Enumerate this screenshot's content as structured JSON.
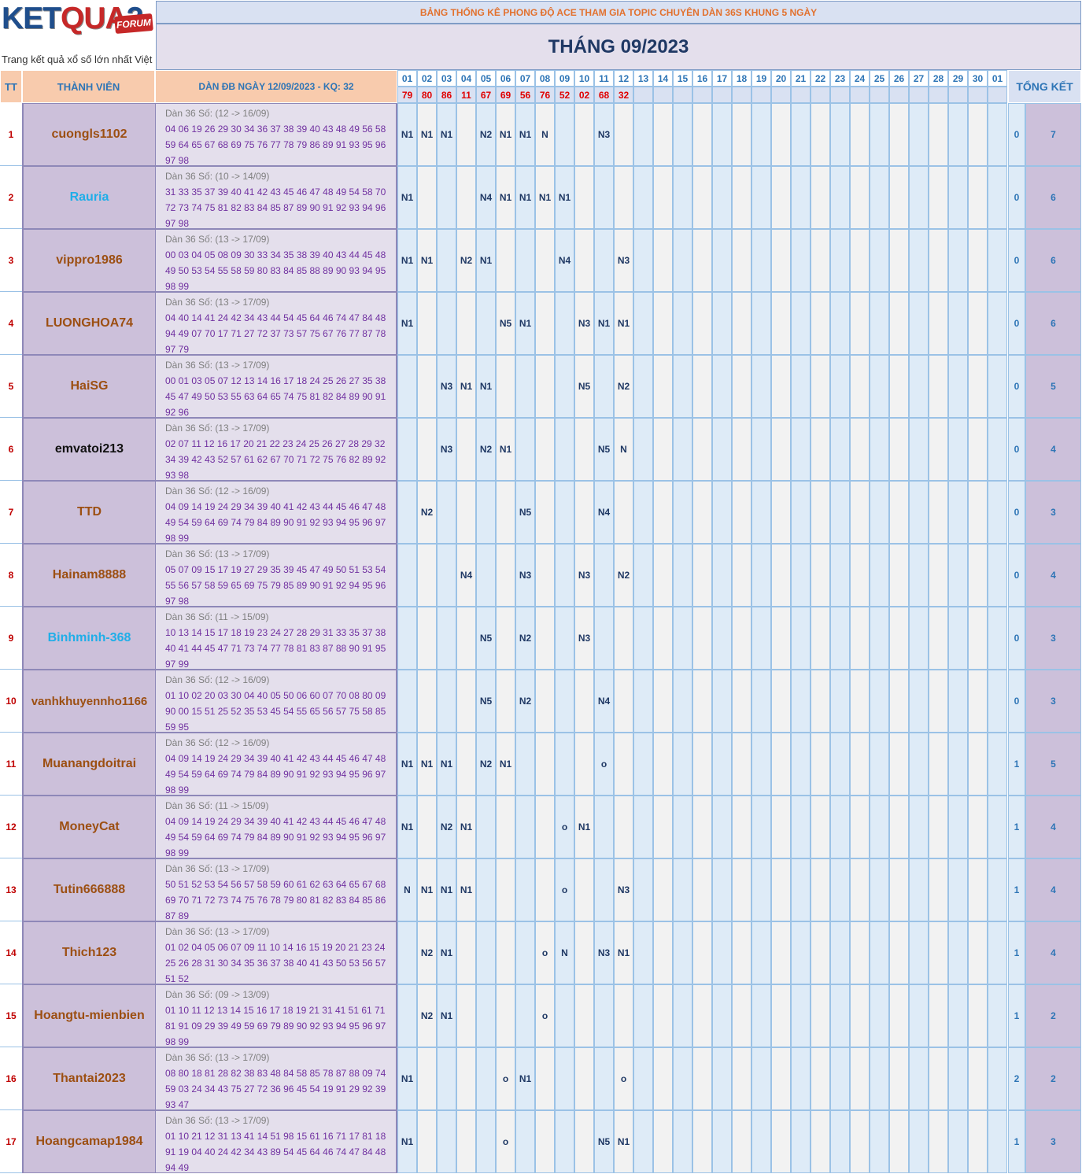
{
  "logo": {
    "word_a": "KET",
    "word_b": "QUA",
    "word_c": "2",
    "badge": "FORUM",
    "tagline": "Trang kết quả xổ số lớn nhất Việt Nam"
  },
  "banner": "BẢNG THỐNG KÊ PHONG ĐỘ ACE THAM GIA TOPIC CHUYÊN DÀN 36S KHUNG 5 NGÀY",
  "month_title": "THÁNG 09/2023",
  "headers": {
    "tt": "TT",
    "member": "THÀNH VIÊN",
    "dan": "DÀN ĐB NGÀY 12/09/2023 - KQ: 32",
    "summary": "TỔNG KẾT"
  },
  "days": [
    "01",
    "02",
    "03",
    "04",
    "05",
    "06",
    "07",
    "08",
    "09",
    "10",
    "11",
    "12",
    "13",
    "14",
    "15",
    "16",
    "17",
    "18",
    "19",
    "20",
    "21",
    "22",
    "23",
    "24",
    "25",
    "26",
    "27",
    "28",
    "29",
    "30",
    "01"
  ],
  "results": [
    "79",
    "80",
    "86",
    "11",
    "67",
    "69",
    "56",
    "76",
    "52",
    "02",
    "68",
    "32",
    "",
    "",
    "",
    "",
    "",
    "",
    "",
    "",
    "",
    "",
    "",
    "",
    "",
    "",
    "",
    "",
    "",
    "",
    ""
  ],
  "colors": {
    "brown": "#9c4f12",
    "cyan": "#1faee8",
    "black": "#111111",
    "header_blue": "#2e75b6",
    "result_red": "#e00000",
    "mark_navy": "#1f3864",
    "purple": "#7030a0"
  },
  "rows": [
    {
      "tt": "1",
      "name": "cuongls1102",
      "color": "brown",
      "line1": "Dàn 36 Số: (12 -> 16/09)",
      "nums": "04 06 19 26 29 30 34 36 37 38 39 40 43 48 49 56 58 59 64 65 67 68 69 75 76 77 78 79 86 89 91 93 95 96 97 98",
      "marks": [
        "N1",
        "N1",
        "N1",
        "",
        "N2",
        "N1",
        "N1",
        "N",
        "",
        "",
        "N3",
        "",
        "",
        "",
        "",
        "",
        "",
        "",
        "",
        "",
        "",
        "",
        "",
        "",
        "",
        "",
        "",
        "",
        "",
        "",
        ""
      ],
      "s1": "0",
      "s2": "7"
    },
    {
      "tt": "2",
      "name": "Rauria",
      "color": "cyan",
      "line1": "Dàn 36 Số: (10 -> 14/09)",
      "nums": "31 33 35 37 39 40 41 42 43 45 46 47 48 49 54 58 70 72 73 74 75 81 82 83 84 85 87 89 90 91 92 93 94 96 97 98",
      "marks": [
        "N1",
        "",
        "",
        "",
        "N4",
        "N1",
        "N1",
        "N1",
        "N1",
        "",
        "",
        "",
        "",
        "",
        "",
        "",
        "",
        "",
        "",
        "",
        "",
        "",
        "",
        "",
        "",
        "",
        "",
        "",
        "",
        "",
        ""
      ],
      "s1": "0",
      "s2": "6"
    },
    {
      "tt": "3",
      "name": "vippro1986",
      "color": "brown",
      "line1": "Dàn 36 Số: (13 -> 17/09)",
      "nums": "00 03 04 05 08 09 30 33 34 35 38 39 40 43 44 45 48 49 50 53 54 55 58 59 80 83 84 85 88 89 90 93 94 95 98 99",
      "marks": [
        "N1",
        "N1",
        "",
        "N2",
        "N1",
        "",
        "",
        "",
        "N4",
        "",
        "",
        "N3",
        "",
        "",
        "",
        "",
        "",
        "",
        "",
        "",
        "",
        "",
        "",
        "",
        "",
        "",
        "",
        "",
        "",
        "",
        ""
      ],
      "s1": "0",
      "s2": "6"
    },
    {
      "tt": "4",
      "name": "LUONGHOA74",
      "color": "brown",
      "line1": "Dàn 36 Số: (13 -> 17/09)",
      "nums": "04 40 14 41 24 42 34 43 44 54 45 64 46 74 47 84 48 94 49 07 70 17 71 27 72 37 73 57 75 67 76 77 87 78 97 79",
      "marks": [
        "N1",
        "",
        "",
        "",
        "",
        "N5",
        "N1",
        "",
        "",
        "N3",
        "N1",
        "N1",
        "",
        "",
        "",
        "",
        "",
        "",
        "",
        "",
        "",
        "",
        "",
        "",
        "",
        "",
        "",
        "",
        "",
        "",
        ""
      ],
      "s1": "0",
      "s2": "6"
    },
    {
      "tt": "5",
      "name": "HaiSG",
      "color": "brown",
      "line1": "Dàn 36 Số: (13 -> 17/09)",
      "nums": "00 01 03 05 07 12 13 14 16 17 18 24 25 26 27 35 38 45 47 49 50 53 55 63 64 65 74 75 81 82 84 89 90 91 92 96",
      "marks": [
        "",
        "",
        "N3",
        "N1",
        "N1",
        "",
        "",
        "",
        "",
        "N5",
        "",
        "N2",
        "",
        "",
        "",
        "",
        "",
        "",
        "",
        "",
        "",
        "",
        "",
        "",
        "",
        "",
        "",
        "",
        "",
        "",
        ""
      ],
      "s1": "0",
      "s2": "5"
    },
    {
      "tt": "6",
      "name": "emvatoi213",
      "color": "black",
      "line1": "Dàn 36 Số: (13 -> 17/09)",
      "nums": "02 07 11 12 16 17 20 21 22 23 24 25 26 27 28 29 32 34 39 42 43 52 57 61 62 67 70 71 72 75 76 82 89 92 93 98",
      "marks": [
        "",
        "",
        "N3",
        "",
        "N2",
        "N1",
        "",
        "",
        "",
        "",
        "N5",
        "N",
        "",
        "",
        "",
        "",
        "",
        "",
        "",
        "",
        "",
        "",
        "",
        "",
        "",
        "",
        "",
        "",
        "",
        "",
        ""
      ],
      "s1": "0",
      "s2": "4"
    },
    {
      "tt": "7",
      "name": "TTD",
      "color": "brown",
      "line1": "Dàn 36 Số: (12 -> 16/09)",
      "nums": "04 09 14 19 24 29 34 39 40 41 42 43 44 45 46 47 48 49 54 59 64 69 74 79 84 89 90 91 92 93 94 95 96 97 98 99",
      "marks": [
        "",
        "N2",
        "",
        "",
        "",
        "",
        "N5",
        "",
        "",
        "",
        "N4",
        "",
        "",
        "",
        "",
        "",
        "",
        "",
        "",
        "",
        "",
        "",
        "",
        "",
        "",
        "",
        "",
        "",
        "",
        "",
        ""
      ],
      "s1": "0",
      "s2": "3"
    },
    {
      "tt": "8",
      "name": "Hainam8888",
      "color": "brown",
      "line1": "Dàn 36 Số: (13 -> 17/09)",
      "nums": "05 07 09 15 17 19 27 29 35 39 45 47 49 50 51 53 54 55 56 57 58 59 65 69 75 79 85 89 90 91 92 94 95 96 97 98",
      "marks": [
        "",
        "",
        "",
        "N4",
        "",
        "",
        "N3",
        "",
        "",
        "N3",
        "",
        "N2",
        "",
        "",
        "",
        "",
        "",
        "",
        "",
        "",
        "",
        "",
        "",
        "",
        "",
        "",
        "",
        "",
        "",
        "",
        ""
      ],
      "s1": "0",
      "s2": "4"
    },
    {
      "tt": "9",
      "name": "Binhminh-368",
      "color": "cyan",
      "line1": "Dàn 36 Số: (11 -> 15/09)",
      "nums": "10 13 14 15 17 18 19 23 24 27 28 29 31 33 35 37 38 40 41 44 45 47 71 73 74 77 78 81 83 87 88 90 91 95 97 99",
      "marks": [
        "",
        "",
        "",
        "",
        "N5",
        "",
        "N2",
        "",
        "",
        "N3",
        "",
        "",
        "",
        "",
        "",
        "",
        "",
        "",
        "",
        "",
        "",
        "",
        "",
        "",
        "",
        "",
        "",
        "",
        "",
        "",
        ""
      ],
      "s1": "0",
      "s2": "3"
    },
    {
      "tt": "10",
      "name": "vanhkhuyennho1166",
      "color": "brown",
      "line1": "Dàn 36 Số: (12 -> 16/09)",
      "nums": "01 10 02 20 03 30 04 40 05 50 06 60 07 70 08 80 09 90 00 15 51 25 52 35 53 45 54 55 65 56 57 75 58 85 59 95",
      "marks": [
        "",
        "",
        "",
        "",
        "N5",
        "",
        "N2",
        "",
        "",
        "",
        "N4",
        "",
        "",
        "",
        "",
        "",
        "",
        "",
        "",
        "",
        "",
        "",
        "",
        "",
        "",
        "",
        "",
        "",
        "",
        "",
        ""
      ],
      "s1": "0",
      "s2": "3"
    },
    {
      "tt": "11",
      "name": "Muanangdoitrai",
      "color": "brown",
      "line1": "Dàn 36 Số: (12 -> 16/09)",
      "nums": "04 09 14 19 24 29 34 39 40 41 42 43 44 45 46 47 48 49 54 59 64 69 74 79 84 89 90 91 92 93 94 95 96 97 98 99",
      "marks": [
        "N1",
        "N1",
        "N1",
        "",
        "N2",
        "N1",
        "",
        "",
        "",
        "",
        "o",
        "",
        "",
        "",
        "",
        "",
        "",
        "",
        "",
        "",
        "",
        "",
        "",
        "",
        "",
        "",
        "",
        "",
        "",
        "",
        ""
      ],
      "s1": "1",
      "s2": "5"
    },
    {
      "tt": "12",
      "name": "MoneyCat",
      "color": "brown",
      "line1": "Dàn 36 Số: (11 -> 15/09)",
      "nums": "04 09 14 19 24 29 34 39 40 41 42 43 44 45 46 47 48 49 54 59 64 69 74 79 84 89 90 91 92 93 94 95 96 97 98 99",
      "marks": [
        "N1",
        "",
        "N2",
        "N1",
        "",
        "",
        "",
        "",
        "o",
        "N1",
        "",
        "",
        "",
        "",
        "",
        "",
        "",
        "",
        "",
        "",
        "",
        "",
        "",
        "",
        "",
        "",
        "",
        "",
        "",
        "",
        ""
      ],
      "s1": "1",
      "s2": "4"
    },
    {
      "tt": "13",
      "name": "Tutin666888",
      "color": "brown",
      "line1": "Dàn 36 Số: (13 -> 17/09)",
      "nums": "50 51 52 53 54 56 57 58 59 60 61 62 63 64 65 67 68 69 70 71 72 73 74 75 76 78 79 80 81 82 83 84 85 86 87 89",
      "marks": [
        "N",
        "N1",
        "N1",
        "N1",
        "",
        "",
        "",
        "",
        "o",
        "",
        "",
        "N3",
        "",
        "",
        "",
        "",
        "",
        "",
        "",
        "",
        "",
        "",
        "",
        "",
        "",
        "",
        "",
        "",
        "",
        "",
        ""
      ],
      "s1": "1",
      "s2": "4"
    },
    {
      "tt": "14",
      "name": "Thich123",
      "color": "brown",
      "line1": "Dàn 36 Số: (13 -> 17/09)",
      "nums": "01 02 04 05 06 07 09 11 10 14 16 15 19 20 21 23 24 25 26 28 31 30 34 35 36 37 38 40 41 43 50 53 56 57 51 52",
      "marks": [
        "",
        "N2",
        "N1",
        "",
        "",
        "",
        "",
        "o",
        "N",
        "",
        "N3",
        "N1",
        "",
        "",
        "",
        "",
        "",
        "",
        "",
        "",
        "",
        "",
        "",
        "",
        "",
        "",
        "",
        "",
        "",
        "",
        ""
      ],
      "s1": "1",
      "s2": "4"
    },
    {
      "tt": "15",
      "name": "Hoangtu-mienbien",
      "color": "brown",
      "line1": "Dàn 36 Số: (09 -> 13/09)",
      "nums": "01 10 11 12 13 14 15 16 17 18 19 21 31 41 51 61 71 81 91 09 29 39 49 59 69 79 89 90 92 93 94 95 96 97 98 99",
      "marks": [
        "",
        "N2",
        "N1",
        "",
        "",
        "",
        "",
        "o",
        "",
        "",
        "",
        "",
        "",
        "",
        "",
        "",
        "",
        "",
        "",
        "",
        "",
        "",
        "",
        "",
        "",
        "",
        "",
        "",
        "",
        "",
        ""
      ],
      "s1": "1",
      "s2": "2"
    },
    {
      "tt": "16",
      "name": "Thantai2023",
      "color": "brown",
      "line1": "Dàn 36 Số: (13 -> 17/09)",
      "nums": "08 80 18 81 28 82 38 83 48 84 58 85 78 87 88 09 74 59 03 24 34 43 75 27 72 36 96 45 54 19 91 29 92 39 93 47",
      "marks": [
        "N1",
        "",
        "",
        "",
        "",
        "o",
        "N1",
        "",
        "",
        "",
        "",
        "o",
        "",
        "",
        "",
        "",
        "",
        "",
        "",
        "",
        "",
        "",
        "",
        "",
        "",
        "",
        "",
        "",
        "",
        "",
        ""
      ],
      "s1": "2",
      "s2": "2"
    },
    {
      "tt": "17",
      "name": "Hoangcamap1984",
      "color": "brown",
      "line1": "Dàn 36 Số: (13 -> 17/09)",
      "nums": "01 10 21 12 31 13 41 14 51 98 15 61 16 71 17 81 18 91 19 04 40 24 42 34 43 89 54 45 64 46 74 47 84 48 94 49",
      "marks": [
        "N1",
        "",
        "",
        "",
        "",
        "o",
        "",
        "",
        "",
        "",
        "N5",
        "N1",
        "",
        "",
        "",
        "",
        "",
        "",
        "",
        "",
        "",
        "",
        "",
        "",
        "",
        "",
        "",
        "",
        "",
        "",
        ""
      ],
      "s1": "1",
      "s2": "3"
    }
  ]
}
